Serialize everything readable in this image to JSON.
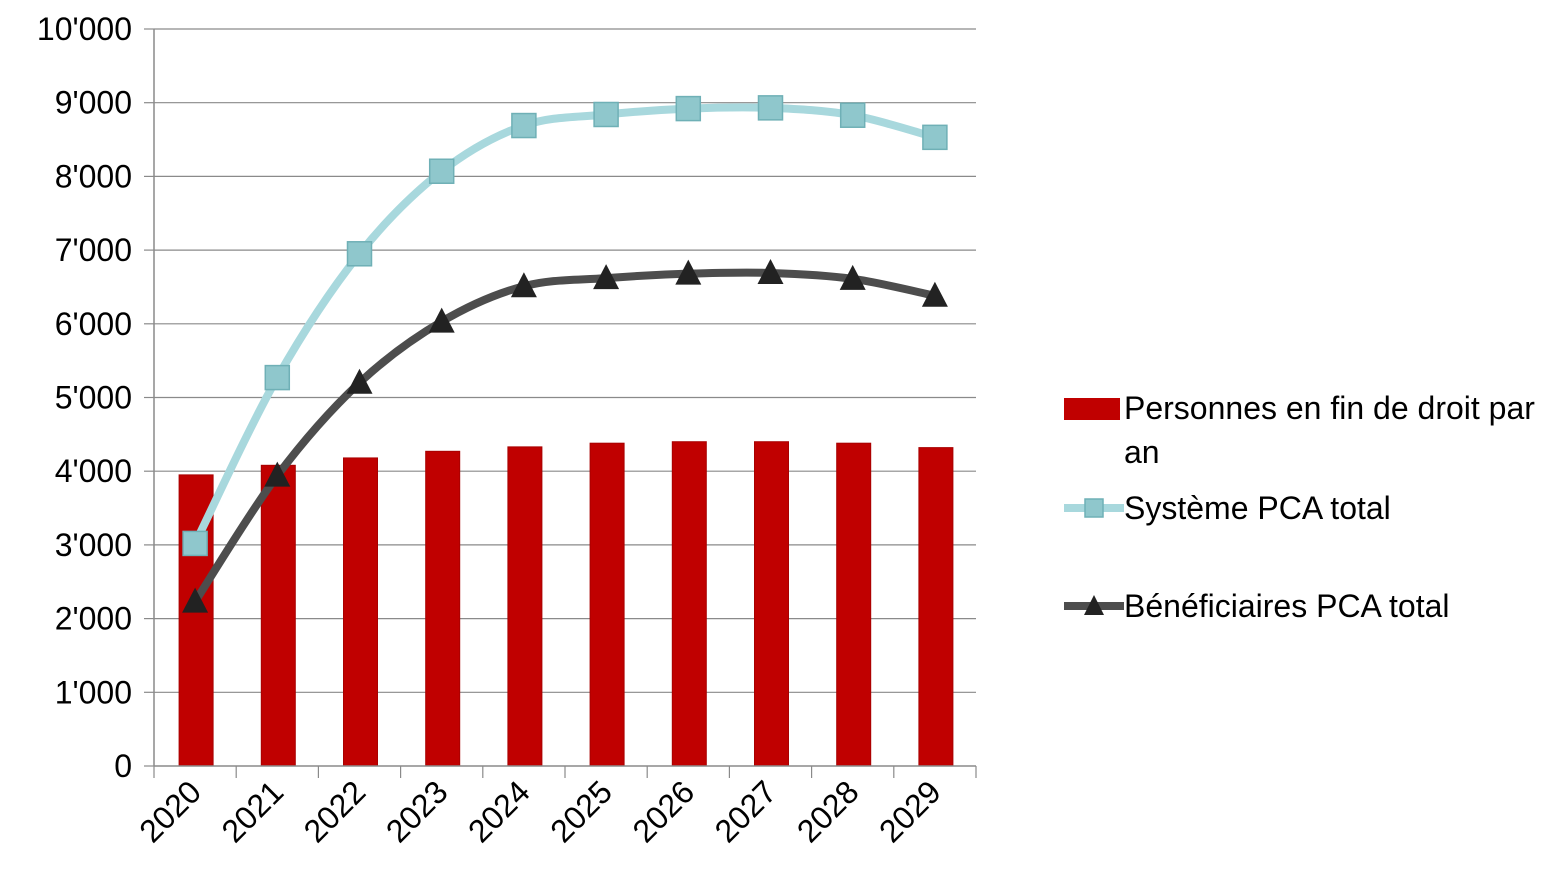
{
  "chart_data": {
    "type": "bar",
    "categories": [
      "2020",
      "2021",
      "2022",
      "2023",
      "2024",
      "2025",
      "2026",
      "2027",
      "2028",
      "2029"
    ],
    "series": [
      {
        "name": "Personnes en fin de droit par an",
        "kind": "bar",
        "color": "#c00000",
        "values": [
          3950,
          4080,
          4180,
          4270,
          4330,
          4380,
          4400,
          4400,
          4380,
          4320
        ]
      },
      {
        "name": "Système PCA total",
        "kind": "line",
        "marker": "square",
        "color": "#a8d8dd",
        "values": [
          3020,
          5270,
          6950,
          8070,
          8690,
          8840,
          8920,
          8930,
          8830,
          8530
        ]
      },
      {
        "name": "Bénéficiaires PCA total",
        "kind": "line",
        "marker": "triangle",
        "color": "#4d4d4d",
        "values": [
          2230,
          3940,
          5200,
          6030,
          6510,
          6620,
          6680,
          6690,
          6610,
          6380
        ]
      }
    ],
    "yticks": [
      "0",
      "1'000",
      "2'000",
      "3'000",
      "4'000",
      "5'000",
      "6'000",
      "7'000",
      "8'000",
      "9'000",
      "10'000"
    ],
    "ylim": [
      0,
      10000
    ],
    "grid": true,
    "legend_position": "right"
  }
}
